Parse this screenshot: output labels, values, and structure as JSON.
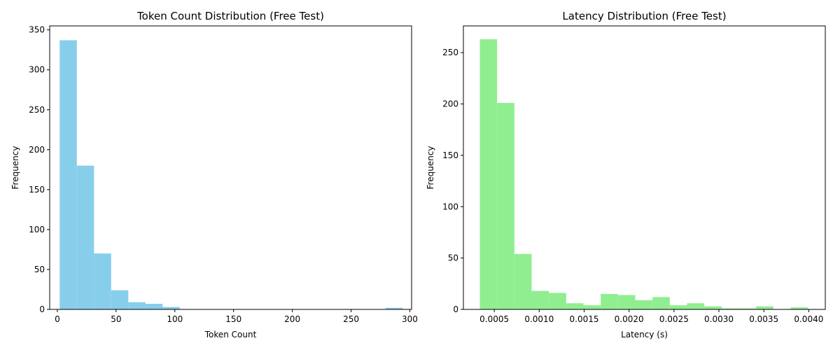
{
  "chart_data": [
    {
      "type": "bar",
      "title": "Token Count Distribution (Free Test)",
      "xlabel": "Token Count",
      "ylabel": "Frequency",
      "xlim": [
        -6.5,
        301.5
      ],
      "ylim": [
        0,
        355
      ],
      "xticks": [
        0,
        50,
        100,
        150,
        200,
        250,
        300
      ],
      "yticks": [
        0,
        50,
        100,
        150,
        200,
        250,
        300,
        350
      ],
      "color": "#87ceeb",
      "bins": [
        {
          "x0": 2.0,
          "x1": 16.6,
          "value": 337
        },
        {
          "x0": 16.6,
          "x1": 31.2,
          "value": 180
        },
        {
          "x0": 31.2,
          "x1": 45.8,
          "value": 70
        },
        {
          "x0": 45.8,
          "x1": 60.4,
          "value": 24
        },
        {
          "x0": 60.4,
          "x1": 75.0,
          "value": 9
        },
        {
          "x0": 75.0,
          "x1": 89.6,
          "value": 7
        },
        {
          "x0": 89.6,
          "x1": 104.2,
          "value": 3
        },
        {
          "x0": 104.2,
          "x1": 118.8,
          "value": 0
        },
        {
          "x0": 118.8,
          "x1": 133.4,
          "value": 0
        },
        {
          "x0": 133.4,
          "x1": 148.0,
          "value": 0
        },
        {
          "x0": 148.0,
          "x1": 162.6,
          "value": 0
        },
        {
          "x0": 162.6,
          "x1": 177.2,
          "value": 0
        },
        {
          "x0": 177.2,
          "x1": 191.8,
          "value": 0
        },
        {
          "x0": 191.8,
          "x1": 206.4,
          "value": 0
        },
        {
          "x0": 206.4,
          "x1": 221.0,
          "value": 0
        },
        {
          "x0": 221.0,
          "x1": 235.6,
          "value": 0
        },
        {
          "x0": 235.6,
          "x1": 250.2,
          "value": 0
        },
        {
          "x0": 250.2,
          "x1": 264.8,
          "value": 0
        },
        {
          "x0": 264.8,
          "x1": 279.4,
          "value": 0
        },
        {
          "x0": 279.4,
          "x1": 294.0,
          "value": 2
        }
      ]
    },
    {
      "type": "bar",
      "title": "Latency Distribution (Free Test)",
      "xlabel": "Latency (s)",
      "ylabel": "Frequency",
      "xlim": [
        0.0001559,
        0.0041841
      ],
      "ylim": [
        0,
        276
      ],
      "xticks": [
        "0.0005",
        "0.0010",
        "0.0015",
        "0.0020",
        "0.0025",
        "0.0030",
        "0.0035",
        "0.0040"
      ],
      "yticks": [
        0,
        50,
        100,
        150,
        200,
        250
      ],
      "color": "#90ee90",
      "bins": [
        {
          "x0": 0.000339,
          "x1": 0.0005312,
          "value": 263
        },
        {
          "x0": 0.0005312,
          "x1": 0.0007234,
          "value": 201
        },
        {
          "x0": 0.0007234,
          "x1": 0.0009156,
          "value": 54
        },
        {
          "x0": 0.0009156,
          "x1": 0.0011078,
          "value": 18
        },
        {
          "x0": 0.0011078,
          "x1": 0.0013,
          "value": 16
        },
        {
          "x0": 0.0013,
          "x1": 0.0014922,
          "value": 6
        },
        {
          "x0": 0.0014922,
          "x1": 0.0016844,
          "value": 4
        },
        {
          "x0": 0.0016844,
          "x1": 0.0018766,
          "value": 15
        },
        {
          "x0": 0.0018766,
          "x1": 0.0020688,
          "value": 14
        },
        {
          "x0": 0.0020688,
          "x1": 0.002261,
          "value": 9
        },
        {
          "x0": 0.002261,
          "x1": 0.0024532,
          "value": 12
        },
        {
          "x0": 0.0024532,
          "x1": 0.0026454,
          "value": 4
        },
        {
          "x0": 0.0026454,
          "x1": 0.0028376,
          "value": 6
        },
        {
          "x0": 0.0028376,
          "x1": 0.0030298,
          "value": 3
        },
        {
          "x0": 0.0030298,
          "x1": 0.003222,
          "value": 1
        },
        {
          "x0": 0.003222,
          "x1": 0.0034142,
          "value": 1
        },
        {
          "x0": 0.0034142,
          "x1": 0.0036064,
          "value": 3
        },
        {
          "x0": 0.0036064,
          "x1": 0.0037986,
          "value": 0
        },
        {
          "x0": 0.0037986,
          "x1": 0.0039908,
          "value": 2
        }
      ]
    }
  ]
}
